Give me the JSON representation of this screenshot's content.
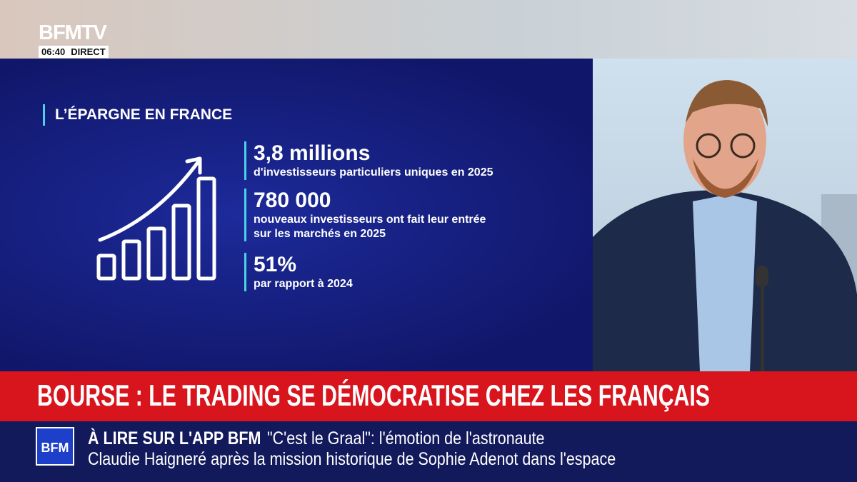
{
  "header": {
    "logo": "BFMTV",
    "time": "06:40",
    "live": "DIRECT"
  },
  "panel": {
    "title": "L’ÉPARGNE EN FRANCE",
    "stats": [
      {
        "value": "3,8 millions",
        "description": [
          "d'investisseurs particuliers uniques en 2025"
        ]
      },
      {
        "value": "780 000",
        "description": [
          "nouveaux investisseurs ont fait leur entrée",
          "sur les marchés en 2025"
        ]
      },
      {
        "value": "51%",
        "description": [
          "par rapport à 2024"
        ]
      }
    ]
  },
  "headline": "BOURSE : LE TRADING SE DÉMOCRATISE CHEZ LES FRANÇAIS",
  "ticker": {
    "badge": "BFM",
    "label": "À LIRE SUR L'APP BFM",
    "line1": "\"C'est le Graal\": l'émotion de l'astronaute",
    "line2": "Claudie Haigneré après la mission historique de Sophie Adenot dans l'espace"
  }
}
